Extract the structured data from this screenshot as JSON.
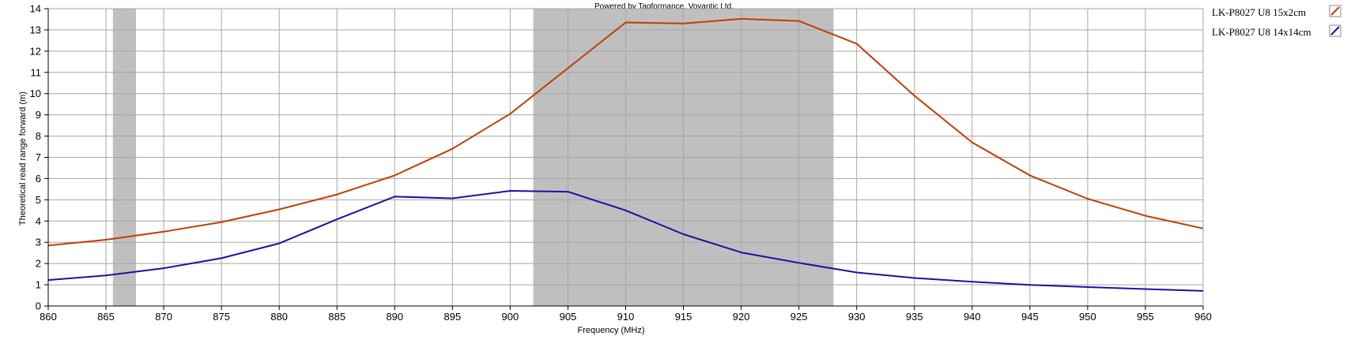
{
  "credit": "Powered by Tagformance, Voyantic Ltd.",
  "chart_data": {
    "type": "line",
    "title": "",
    "xlabel": "Frequency (MHz)",
    "ylabel": "Theoretical read range forward (m)",
    "xlim": [
      860,
      960
    ],
    "ylim": [
      0,
      14
    ],
    "xticks": [
      860,
      865,
      870,
      875,
      880,
      885,
      890,
      895,
      900,
      905,
      910,
      915,
      920,
      925,
      930,
      935,
      940,
      945,
      950,
      955,
      960
    ],
    "yticks": [
      0,
      1,
      2,
      3,
      4,
      5,
      6,
      7,
      8,
      9,
      10,
      11,
      12,
      13,
      14
    ],
    "grid": true,
    "legend": "right",
    "shaded_bands": [
      {
        "from": 865.6,
        "to": 867.6,
        "color": "#bfbfbf"
      },
      {
        "from": 902,
        "to": 928,
        "color": "#bfbfbf"
      }
    ],
    "x": [
      860,
      865,
      870,
      875,
      880,
      885,
      890,
      895,
      900,
      905,
      910,
      915,
      920,
      925,
      930,
      935,
      940,
      945,
      950,
      955,
      960
    ],
    "series": [
      {
        "name": "LK-P8027 U8 15x2cm",
        "color": "#c43c00",
        "values": [
          2.85,
          3.12,
          3.5,
          3.95,
          4.55,
          5.25,
          6.15,
          7.4,
          9.05,
          11.2,
          13.35,
          13.3,
          13.52,
          13.42,
          12.35,
          9.9,
          7.7,
          6.15,
          5.05,
          4.25,
          3.65
        ]
      },
      {
        "name": "LK-P8027 U8 14x14cm",
        "color": "#2a0aa0",
        "values": [
          1.22,
          1.44,
          1.78,
          2.25,
          2.95,
          4.08,
          5.15,
          5.07,
          5.42,
          5.38,
          4.5,
          3.38,
          2.52,
          2.03,
          1.58,
          1.32,
          1.14,
          0.99,
          0.89,
          0.8,
          0.71
        ]
      }
    ]
  }
}
